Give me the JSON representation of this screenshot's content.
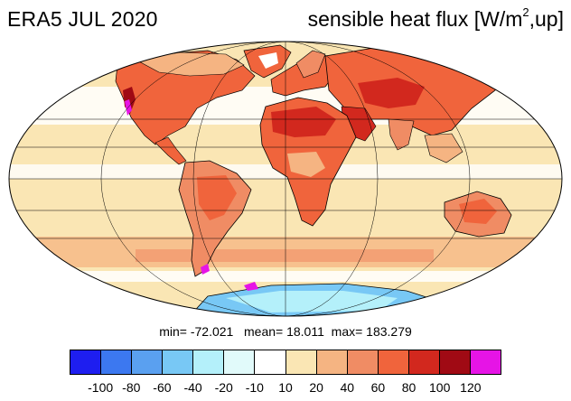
{
  "title_left": "ERA5 JUL 2020",
  "title_right": {
    "prefix": "sensible heat flux [W/m",
    "superscript": "2",
    "suffix": ",up]"
  },
  "stats": {
    "min_label": "min=",
    "min_value": "-72.021",
    "mean_label": "mean=",
    "mean_value": "18.011",
    "max_label": "max=",
    "max_value": "183.279"
  },
  "colorbar": {
    "colors": [
      "#1e1ef0",
      "#3c78f0",
      "#5aa0f0",
      "#78c8f5",
      "#b4f0fa",
      "#e1fafa",
      "#ffffff",
      "#fae6b4",
      "#f5b482",
      "#f08c64",
      "#f0643c",
      "#d2281e",
      "#a00a14",
      "#e614e6"
    ],
    "labels": [
      "-100",
      "-80",
      "-60",
      "-40",
      "-20",
      "-10",
      "10",
      "20",
      "40",
      "60",
      "80",
      "100",
      "120"
    ]
  },
  "map": {
    "projection": "Mollweide",
    "ocean_color": "#fae6b4",
    "land_color": "#f0643c"
  }
}
